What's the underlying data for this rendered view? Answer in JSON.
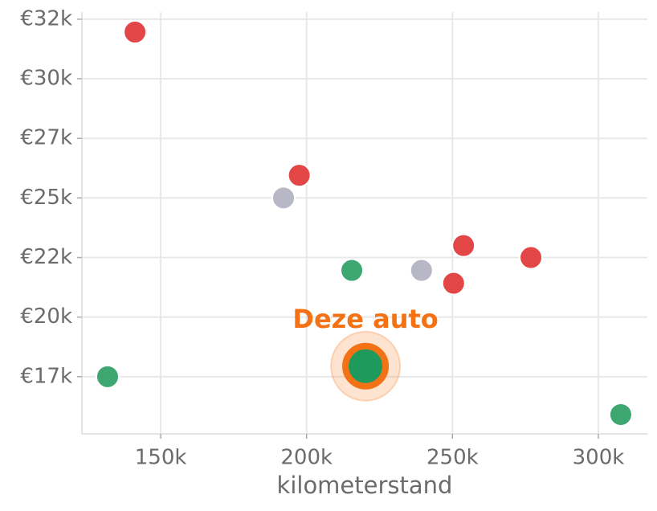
{
  "chart_data": {
    "type": "scatter",
    "x_label": "kilometerstand",
    "xlim": [
      123000,
      316800
    ],
    "ylim": [
      15100,
      32800
    ],
    "xticks": [
      {
        "value": 150000,
        "label": "150k"
      },
      {
        "value": 200000,
        "label": "200k"
      },
      {
        "value": 250000,
        "label": "250k"
      },
      {
        "value": 300000,
        "label": "300k"
      }
    ],
    "yticks": [
      {
        "value": 17500,
        "label": "€17k"
      },
      {
        "value": 20000,
        "label": "€20k"
      },
      {
        "value": 22500,
        "label": "€22k"
      },
      {
        "value": 25000,
        "label": "€25k"
      },
      {
        "value": 27500,
        "label": "€27k"
      },
      {
        "value": 30000,
        "label": "€30k"
      },
      {
        "value": 32500,
        "label": "€32k"
      }
    ],
    "grid": true,
    "series": [
      {
        "color": "#e03c3c",
        "x": [
          141200,
          197500,
          253800,
          276900,
          250400
        ],
        "values": [
          31960,
          25950,
          23000,
          22500,
          21420
        ]
      },
      {
        "color": "#34a269",
        "x": [
          215500,
          131800,
          307700
        ],
        "values": [
          21960,
          17500,
          15910
        ]
      },
      {
        "color": "#b3b3c3",
        "x": [
          192100,
          239400
        ],
        "values": [
          25000,
          21960
        ]
      }
    ],
    "highlight": {
      "label": "Deze auto",
      "x": 220200,
      "y": 17940,
      "color": "#f47216",
      "fill": "#1e9a5c"
    }
  }
}
